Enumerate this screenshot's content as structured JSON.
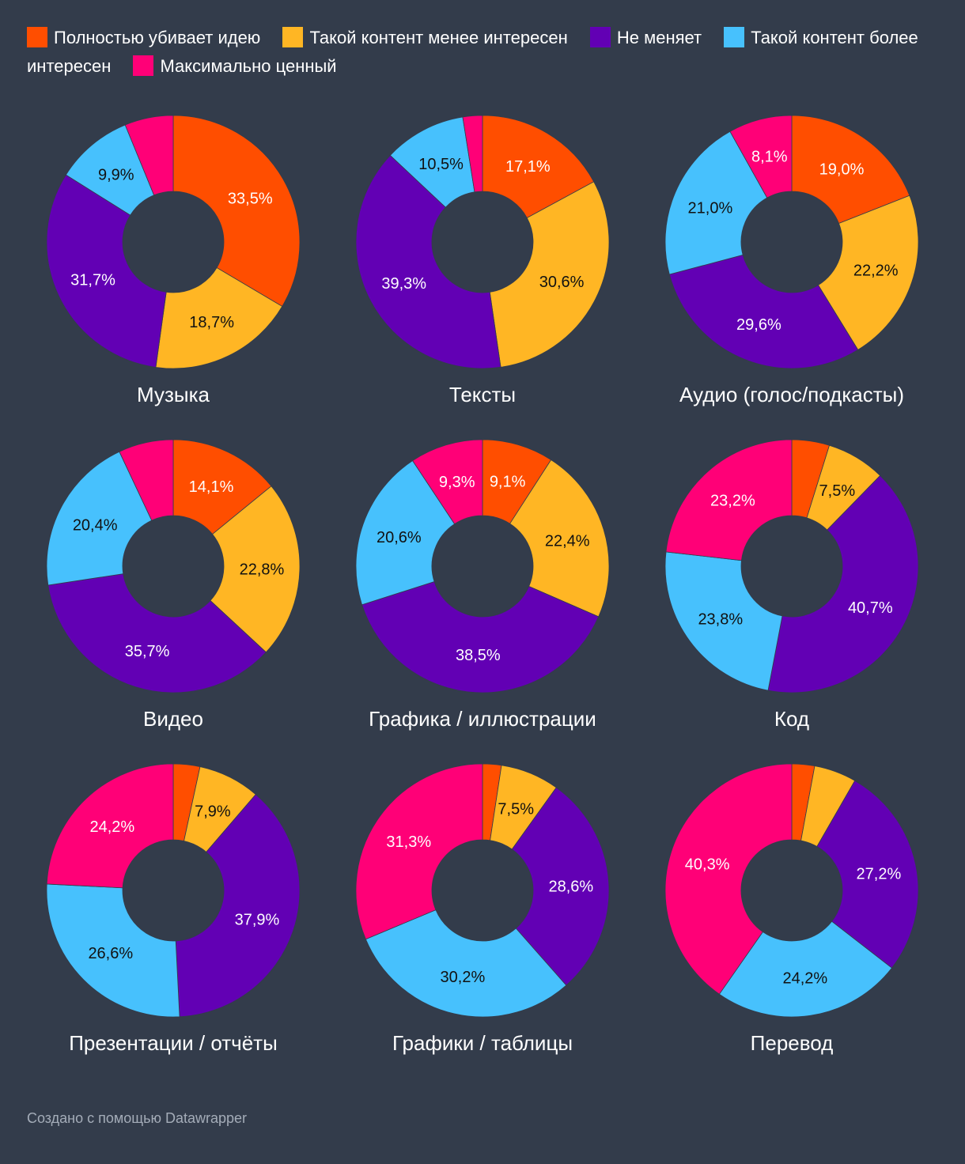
{
  "legend": [
    {
      "label": "Полностью убивает идею",
      "color": "#ff4e00"
    },
    {
      "label": "Такой контент менее интересен",
      "color": "#ffb624"
    },
    {
      "label": "Не меняет",
      "color": "#6200b4"
    },
    {
      "label": "Такой контент более интересен",
      "color": "#47c1fd"
    },
    {
      "label": "Максимально ценный",
      "color": "#ff0077"
    }
  ],
  "footer": "Создано с помощью Datawrapper",
  "chart_data": [
    {
      "type": "pie",
      "title": "Музыка",
      "categories": [
        "Полностью убивает идею",
        "Такой контент менее интересен",
        "Не меняет",
        "Такой контент более интересен",
        "Максимально ценный"
      ],
      "values": [
        33.5,
        18.7,
        31.7,
        9.9,
        6.2
      ],
      "labels": [
        "33,5%",
        "18,7%",
        "31,7%",
        "9,9%",
        ""
      ]
    },
    {
      "type": "pie",
      "title": "Тексты",
      "categories": [
        "Полностью убивает идею",
        "Такой контент менее интересен",
        "Не меняет",
        "Такой контент более интересен",
        "Максимально ценный"
      ],
      "values": [
        17.1,
        30.6,
        39.3,
        10.5,
        2.5
      ],
      "labels": [
        "17,1%",
        "30,6%",
        "39,3%",
        "10,5%",
        ""
      ]
    },
    {
      "type": "pie",
      "title": "Аудио (голос/подкасты)",
      "categories": [
        "Полностью убивает идею",
        "Такой контент менее интересен",
        "Не меняет",
        "Такой контент более интересен",
        "Максимально ценный"
      ],
      "values": [
        19.0,
        22.2,
        29.6,
        21.0,
        8.1
      ],
      "labels": [
        "19,0%",
        "22,2%",
        "29,6%",
        "21,0%",
        "8,1%"
      ]
    },
    {
      "type": "pie",
      "title": "Видео",
      "categories": [
        "Полностью убивает идею",
        "Такой контент менее интересен",
        "Не меняет",
        "Такой контент более интересен",
        "Максимально ценный"
      ],
      "values": [
        14.1,
        22.8,
        35.7,
        20.4,
        7.0
      ],
      "labels": [
        "14,1%",
        "22,8%",
        "35,7%",
        "20,4%",
        ""
      ]
    },
    {
      "type": "pie",
      "title": "Графика / иллюстрации",
      "categories": [
        "Полностью убивает идею",
        "Такой контент менее интересен",
        "Не меняет",
        "Такой контент более интересен",
        "Максимально ценный"
      ],
      "values": [
        9.1,
        22.4,
        38.5,
        20.6,
        9.3
      ],
      "labels": [
        "9,1%",
        "22,4%",
        "38,5%",
        "20,6%",
        "9,3%"
      ]
    },
    {
      "type": "pie",
      "title": "Код",
      "categories": [
        "Полностью убивает идею",
        "Такой контент менее интересен",
        "Не меняет",
        "Такой контент более интересен",
        "Максимально ценный"
      ],
      "values": [
        4.8,
        7.5,
        40.7,
        23.8,
        23.2
      ],
      "labels": [
        "",
        "7,5%",
        "40,7%",
        "23,8%",
        "23,2%"
      ]
    },
    {
      "type": "pie",
      "title": "Презентации / отчёты",
      "categories": [
        "Полностью убивает идею",
        "Такой контент менее интересен",
        "Не меняет",
        "Такой контент более интересен",
        "Максимально ценный"
      ],
      "values": [
        3.4,
        7.9,
        37.9,
        26.6,
        24.2
      ],
      "labels": [
        "",
        "7,9%",
        "37,9%",
        "26,6%",
        "24,2%"
      ]
    },
    {
      "type": "pie",
      "title": "Графики / таблицы",
      "categories": [
        "Полностью убивает идею",
        "Такой контент менее интересен",
        "Не меняет",
        "Такой контент более интересен",
        "Максимально ценный"
      ],
      "values": [
        2.4,
        7.5,
        28.6,
        30.2,
        31.3
      ],
      "labels": [
        "",
        "7,5%",
        "28,6%",
        "30,2%",
        "31,3%"
      ]
    },
    {
      "type": "pie",
      "title": "Перевод",
      "categories": [
        "Полностью убивает идею",
        "Такой контент менее интересен",
        "Не меняет",
        "Такой контент более интересен",
        "Максимально ценный"
      ],
      "values": [
        2.9,
        5.4,
        27.2,
        24.2,
        40.3
      ],
      "labels": [
        "",
        "",
        "27,2%",
        "24,2%",
        "40,3%"
      ]
    }
  ]
}
